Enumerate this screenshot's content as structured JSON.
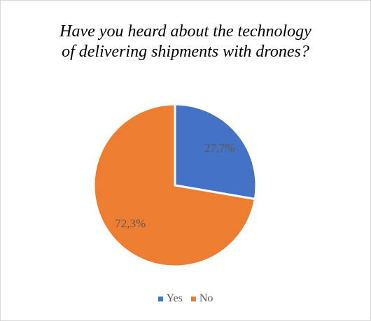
{
  "chart_data": {
    "type": "pie",
    "title_lines": [
      "Have you heard about the technology",
      "of delivering shipments with drones?"
    ],
    "categories": [
      "Yes",
      "No"
    ],
    "values": [
      27.7,
      72.3
    ],
    "data_labels": [
      "27,7%",
      "72,3%"
    ],
    "colors": [
      "#4472C4",
      "#ED7D31"
    ],
    "legend_position": "bottom"
  }
}
